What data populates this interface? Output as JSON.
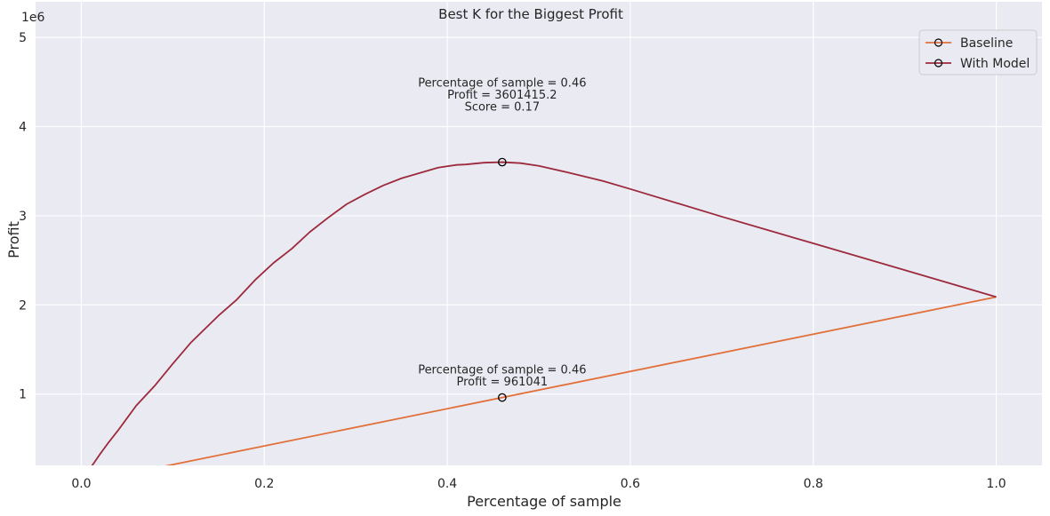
{
  "chart_data": {
    "type": "line",
    "title": "Best K for the Biggest Profit",
    "xlabel": "Percentage of sample",
    "ylabel": "Profit",
    "y_scale_label": "1e6",
    "xlim": [
      -0.05,
      1.05
    ],
    "ylim": [
      200000,
      5400000
    ],
    "x_ticks": [
      0.0,
      0.2,
      0.4,
      0.6,
      0.8,
      1.0
    ],
    "x_tick_labels": [
      "0.0",
      "0.2",
      "0.4",
      "0.6",
      "0.8",
      "1.0"
    ],
    "y_ticks": [
      1000000,
      2000000,
      3000000,
      4000000,
      5000000
    ],
    "y_tick_labels": [
      "1",
      "2",
      "3",
      "4",
      "5"
    ],
    "grid": true,
    "legend_position": "top-right",
    "colors": {
      "background": "#eaeaf2",
      "grid": "#ffffff",
      "baseline": "#e2703a",
      "model": "#9c2a3c"
    },
    "series": [
      {
        "name": "Baseline",
        "color": "#e2703a",
        "x": [
          0.0,
          1.0
        ],
        "y": [
          0,
          2089220
        ]
      },
      {
        "name": "With Model",
        "color": "#9c2a3c",
        "x": [
          0.01,
          0.02,
          0.03,
          0.04,
          0.05,
          0.06,
          0.08,
          0.1,
          0.12,
          0.14,
          0.15,
          0.17,
          0.19,
          0.21,
          0.23,
          0.25,
          0.27,
          0.29,
          0.31,
          0.33,
          0.35,
          0.37,
          0.39,
          0.41,
          0.42,
          0.44,
          0.46,
          0.48,
          0.5,
          0.53,
          0.57,
          0.6,
          0.7,
          0.8,
          0.9,
          1.0
        ],
        "y": [
          170000,
          320000,
          460000,
          590000,
          730000,
          870000,
          1090000,
          1340000,
          1580000,
          1780000,
          1880000,
          2060000,
          2280000,
          2470000,
          2630000,
          2820000,
          2980000,
          3130000,
          3240000,
          3340000,
          3420000,
          3480000,
          3540000,
          3570000,
          3575000,
          3595000,
          3601415,
          3590000,
          3560000,
          3490000,
          3390000,
          3300000,
          2990000,
          2690000,
          2390000,
          2089220
        ]
      }
    ],
    "highlight_points": [
      {
        "series": "With Model",
        "x": 0.46,
        "y": 3601415.2
      },
      {
        "series": "Baseline",
        "x": 0.46,
        "y": 961041
      }
    ],
    "annotations": [
      {
        "lines": [
          "Percentage of sample = 0.46",
          "Profit = 3601415.2",
          "Score = 0.17"
        ],
        "x": 0.46,
        "y": 4450000
      },
      {
        "lines": [
          "Percentage of sample = 0.46",
          "Profit = 961041"
        ],
        "x": 0.46,
        "y": 1230000
      }
    ]
  }
}
